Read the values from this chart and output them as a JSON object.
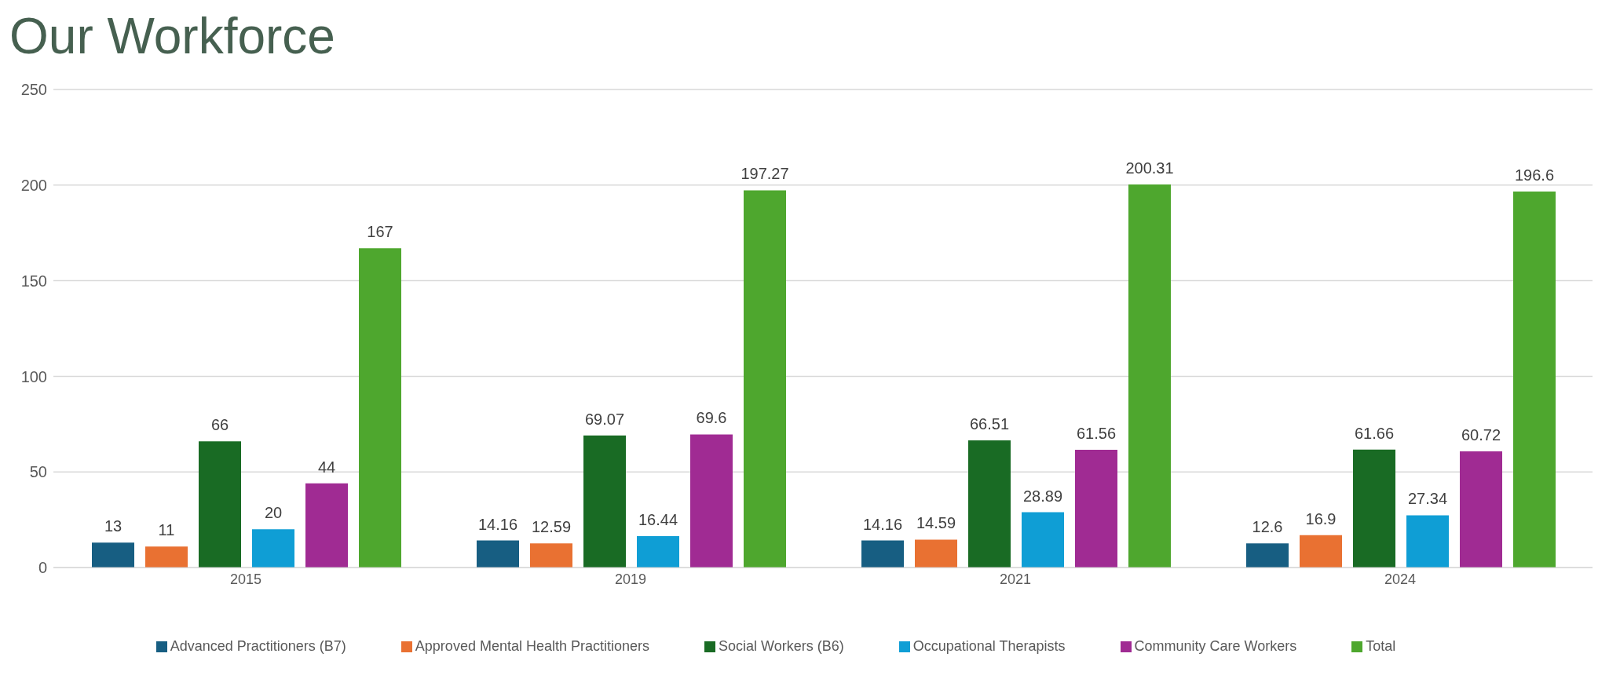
{
  "chart_data": {
    "type": "bar",
    "title": "Our Workforce",
    "categories": [
      "2015",
      "2019",
      "2021",
      "2024"
    ],
    "series": [
      {
        "name": "Advanced Practitioners (B7)",
        "color": "#175e82",
        "values": [
          13,
          14.16,
          14.16,
          12.6
        ]
      },
      {
        "name": "Approved Mental Health Practitioners",
        "color": "#e97132",
        "values": [
          11,
          12.59,
          14.59,
          16.9
        ]
      },
      {
        "name": "Social Workers  (B6)",
        "color": "#196b24",
        "values": [
          66,
          69.07,
          66.51,
          61.66
        ]
      },
      {
        "name": "Occupational Therapists",
        "color": "#0f9ed5",
        "values": [
          20,
          16.44,
          28.89,
          27.34
        ]
      },
      {
        "name": "Community Care Workers",
        "color": "#a02b93",
        "values": [
          44,
          69.6,
          61.56,
          60.72
        ]
      },
      {
        "name": "Total",
        "color": "#4ea72e",
        "values": [
          167,
          197.27,
          200.31,
          196.6
        ]
      }
    ],
    "ylim": [
      0,
      250
    ],
    "yticks": [
      0,
      50,
      100,
      150,
      200,
      250
    ],
    "grid": "y",
    "legend": "bottom",
    "data_labels": true
  }
}
